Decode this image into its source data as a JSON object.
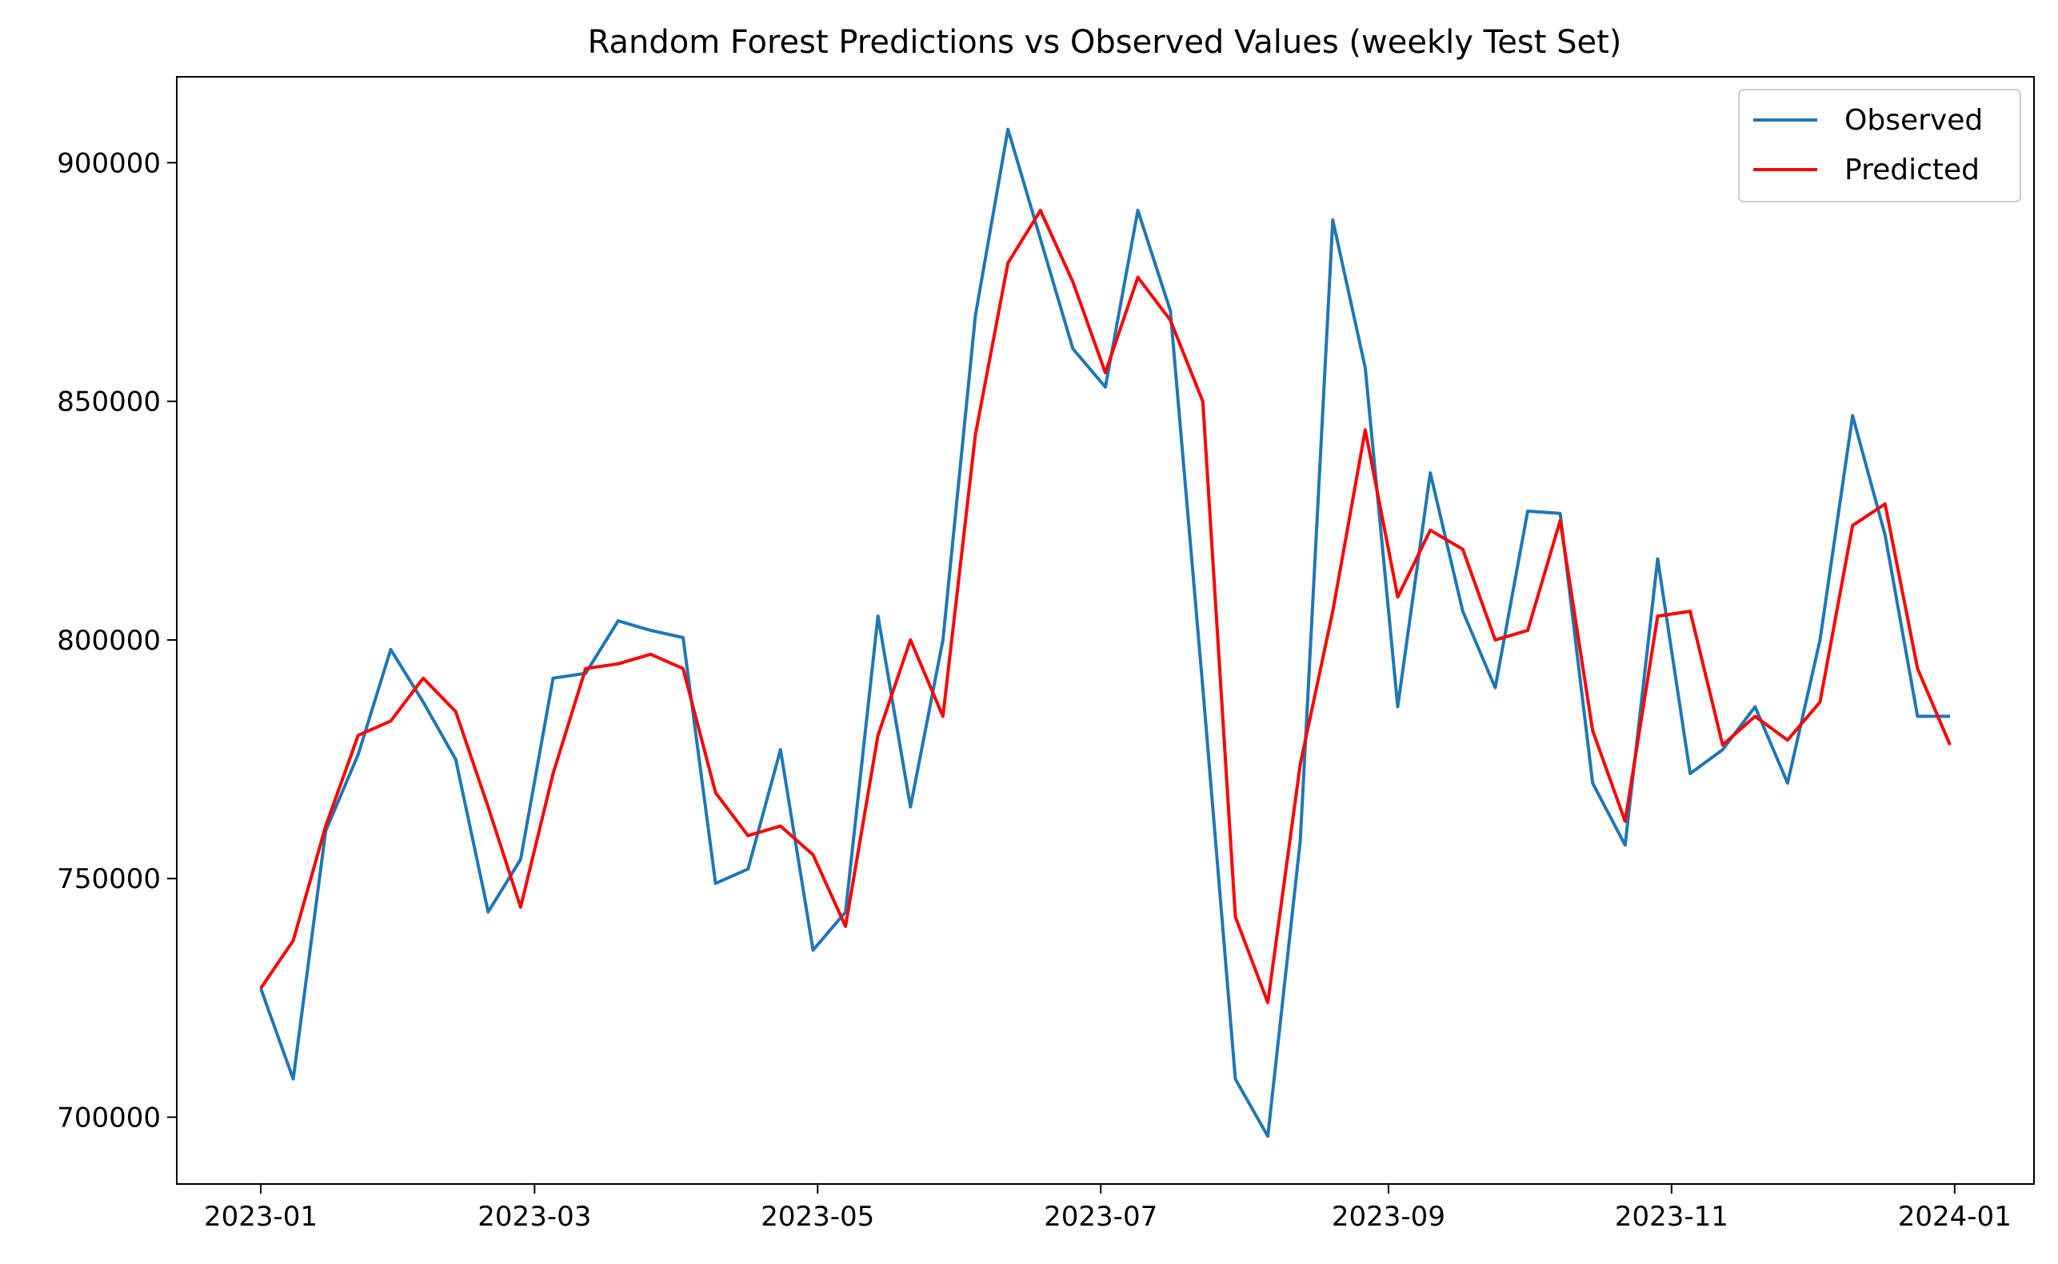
{
  "chart_data": {
    "type": "line",
    "title": "Random Forest Predictions vs Observed Values (weekly Test Set)",
    "xlabel": "",
    "ylabel": "",
    "x": [
      "2023-01-01",
      "2023-01-08",
      "2023-01-15",
      "2023-01-22",
      "2023-01-29",
      "2023-02-05",
      "2023-02-12",
      "2023-02-19",
      "2023-02-26",
      "2023-03-05",
      "2023-03-12",
      "2023-03-19",
      "2023-03-26",
      "2023-04-02",
      "2023-04-09",
      "2023-04-16",
      "2023-04-23",
      "2023-04-30",
      "2023-05-07",
      "2023-05-14",
      "2023-05-21",
      "2023-05-28",
      "2023-06-04",
      "2023-06-11",
      "2023-06-18",
      "2023-06-25",
      "2023-07-02",
      "2023-07-09",
      "2023-07-16",
      "2023-07-23",
      "2023-07-30",
      "2023-08-06",
      "2023-08-13",
      "2023-08-20",
      "2023-08-27",
      "2023-09-03",
      "2023-09-10",
      "2023-09-17",
      "2023-09-24",
      "2023-10-01",
      "2023-10-08",
      "2023-10-15",
      "2023-10-22",
      "2023-10-29",
      "2023-11-05",
      "2023-11-12",
      "2023-11-19",
      "2023-11-26",
      "2023-12-03",
      "2023-12-10",
      "2023-12-17",
      "2023-12-24",
      "2023-12-31"
    ],
    "series": [
      {
        "name": "Observed",
        "color": "#1f77b4",
        "values": [
          727000,
          708000,
          760000,
          776000,
          798000,
          787000,
          775000,
          743000,
          754000,
          792000,
          793000,
          804000,
          802000,
          800500,
          749000,
          752000,
          777000,
          735000,
          743000,
          805000,
          765000,
          800000,
          868000,
          907000,
          884000,
          861000,
          853000,
          890000,
          869000,
          790000,
          708000,
          696000,
          758000,
          888000,
          857000,
          786000,
          835000,
          806000,
          790000,
          827000,
          826500,
          770000,
          757000,
          817000,
          772000,
          777000,
          786000,
          770000,
          800000,
          847000,
          822000,
          784000,
          784000
        ]
      },
      {
        "name": "Predicted",
        "color": "#ff0000",
        "values": [
          727000,
          737000,
          761000,
          780000,
          783000,
          792000,
          785000,
          765000,
          744000,
          772000,
          794000,
          795000,
          797000,
          794000,
          768000,
          759000,
          761000,
          755000,
          740000,
          780000,
          800000,
          784000,
          843000,
          879000,
          890000,
          875000,
          856000,
          876000,
          867000,
          850000,
          742000,
          724000,
          774000,
          806000,
          844000,
          809000,
          823000,
          819000,
          800000,
          802000,
          825000,
          781000,
          762000,
          805000,
          806000,
          778000,
          784000,
          779000,
          787000,
          824000,
          828500,
          794000,
          778000
        ]
      }
    ],
    "ylim": [
      686000,
      918000
    ],
    "yticks": [
      700000,
      750000,
      800000,
      850000,
      900000
    ],
    "xticks": [
      "2023-01",
      "2023-03",
      "2023-05",
      "2023-07",
      "2023-09",
      "2023-11",
      "2024-01"
    ],
    "legend": "top-right",
    "grid": false
  }
}
